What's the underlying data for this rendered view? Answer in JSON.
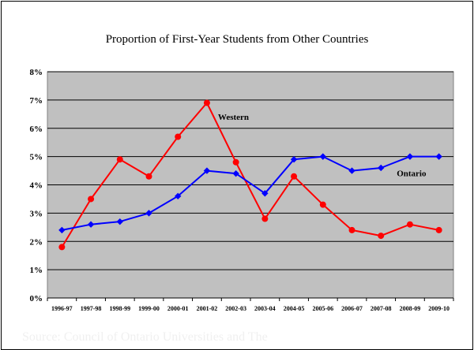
{
  "slide": {
    "source_text": "Source:  Council of Ontario Universities and The"
  },
  "colors": {
    "plot_background": "#c0c0c0",
    "gridline": "#000000",
    "western_series": "#ff0000",
    "ontario_series": "#0000ff"
  },
  "chart_data": {
    "type": "line",
    "title": "Proportion of First-Year Students from Other Countries",
    "xlabel": "",
    "ylabel": "",
    "categories": [
      "1996-97",
      "1997-98",
      "1998-99",
      "1999-00",
      "2000-01",
      "2001-02",
      "2002-03",
      "2003-04",
      "2004-05",
      "2005-06",
      "2006-07",
      "2007-08",
      "2008-09",
      "2009-10"
    ],
    "ylim": [
      0,
      8
    ],
    "y_ticks": [
      {
        "value": 0,
        "label": "0%"
      },
      {
        "value": 1,
        "label": "1%"
      },
      {
        "value": 2,
        "label": "2%"
      },
      {
        "value": 3,
        "label": "3%"
      },
      {
        "value": 4,
        "label": "4%"
      },
      {
        "value": 5,
        "label": "5%"
      },
      {
        "value": 6,
        "label": "6%"
      },
      {
        "value": 7,
        "label": "7%"
      },
      {
        "value": 8,
        "label": "8%"
      }
    ],
    "grid": true,
    "legend": "none",
    "series": [
      {
        "name": "Western",
        "color": "#ff0000",
        "marker": "circle",
        "label_anchor": {
          "category": "2001-02",
          "value": 6.3
        },
        "values": [
          1.8,
          3.5,
          4.9,
          4.3,
          5.7,
          6.9,
          4.8,
          2.8,
          4.3,
          3.3,
          2.4,
          2.2,
          2.6,
          2.4
        ]
      },
      {
        "name": "Ontario",
        "color": "#0000ff",
        "marker": "diamond",
        "label_anchor": {
          "category": "2007-08",
          "value": 4.3
        },
        "values": [
          2.4,
          2.6,
          2.7,
          3.0,
          3.6,
          4.5,
          4.4,
          3.7,
          4.9,
          5.0,
          4.5,
          4.6,
          5.0,
          5.0
        ]
      }
    ]
  }
}
